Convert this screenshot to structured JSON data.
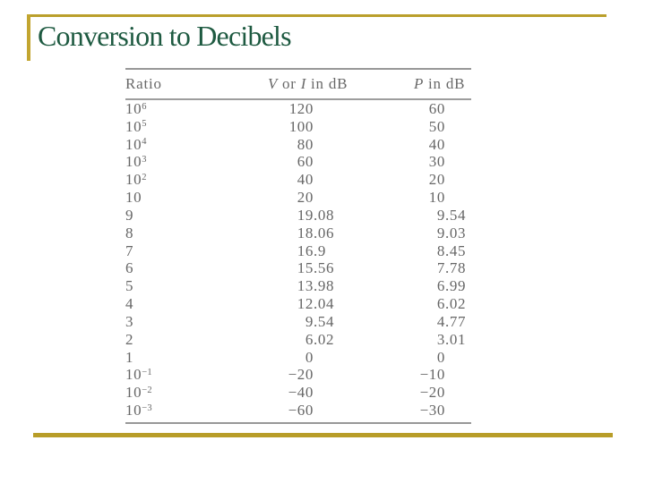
{
  "slide": {
    "title": "Conversion to Decibels",
    "colors": {
      "accent_gold": "#ba9f2b",
      "title_green": "#1e5a41",
      "table_text": "#666666",
      "table_rule": "#979797"
    }
  },
  "table": {
    "header": {
      "ratio": "Ratio",
      "v_sym1": "V",
      "v_mid": " or ",
      "v_sym2": "I",
      "v_suffix": " in dB",
      "p_sym": "P",
      "p_suffix": " in dB"
    },
    "rows": [
      [
        "10^6",
        "120",
        "60"
      ],
      [
        "10^5",
        "100",
        "50"
      ],
      [
        "10^4",
        "80",
        "40"
      ],
      [
        "10^3",
        "60",
        "30"
      ],
      [
        "10^2",
        "40",
        "20"
      ],
      [
        "10",
        "20",
        "10"
      ],
      [
        "9",
        "19.08",
        "9.54"
      ],
      [
        "8",
        "18.06",
        "9.03"
      ],
      [
        "7",
        "16.9",
        "8.45"
      ],
      [
        "6",
        "15.56",
        "7.78"
      ],
      [
        "5",
        "13.98",
        "6.99"
      ],
      [
        "4",
        "12.04",
        "6.02"
      ],
      [
        "3",
        "9.54",
        "4.77"
      ],
      [
        "2",
        "6.02",
        "3.01"
      ],
      [
        "1",
        "0",
        "0"
      ],
      [
        "10^−1",
        "−20",
        "−10"
      ],
      [
        "10^−2",
        "−40",
        "−20"
      ],
      [
        "10^−3",
        "−60",
        "−30"
      ]
    ]
  }
}
